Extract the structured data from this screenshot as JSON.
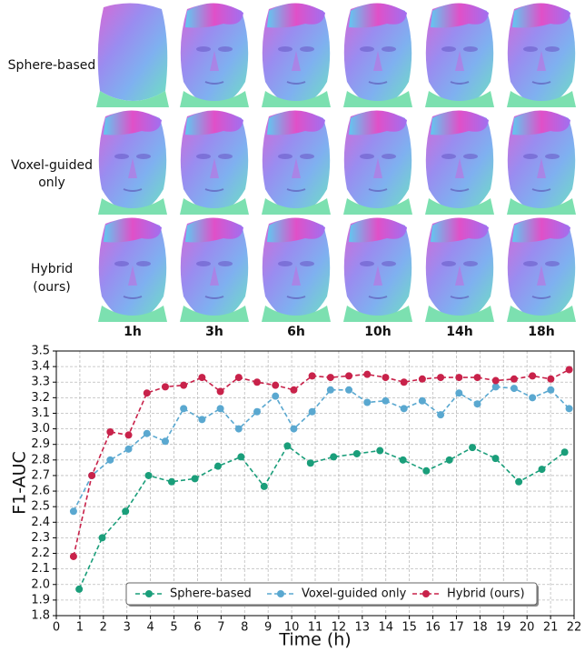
{
  "image_grid": {
    "rows": [
      "Sphere-based",
      "Voxel-guided",
      "only",
      "Hybrid",
      "(ours)"
    ],
    "columns": [
      "1h",
      "3h",
      "6h",
      "10h",
      "14h",
      "18h"
    ]
  },
  "chart_data": {
    "type": "line",
    "xlabel": "Time (h)",
    "ylabel": "F1-AUC",
    "xlim": [
      0,
      22
    ],
    "ylim": [
      1.8,
      3.5
    ],
    "xticks": [
      0,
      1,
      2,
      3,
      4,
      5,
      6,
      7,
      8,
      9,
      10,
      11,
      12,
      13,
      14,
      15,
      16,
      17,
      18,
      19,
      20,
      21,
      22
    ],
    "yticks": [
      1.8,
      1.9,
      {
        "value": 2,
        "label": "2.0"
      },
      2.1,
      2.2,
      2.3,
      2.4,
      2.5,
      2.6,
      2.7,
      2.8,
      2.9,
      {
        "value": 3,
        "label": "3.0"
      },
      3.1,
      3.2,
      3.3,
      3.4,
      3.5
    ],
    "grid": true,
    "legend": "lower center",
    "series": [
      {
        "name": "Sphere-based",
        "color": "#1a9e7a",
        "x": [
          0.97,
          1.95,
          2.94,
          3.92,
          4.9,
          5.89,
          6.87,
          7.85,
          8.83,
          9.82,
          10.8,
          11.78,
          12.77,
          13.75,
          14.73,
          15.72,
          16.7,
          17.68,
          18.66,
          19.65,
          20.63,
          21.6
        ],
        "values": [
          1.97,
          2.3,
          2.47,
          2.7,
          2.66,
          2.68,
          2.76,
          2.82,
          2.63,
          2.89,
          2.78,
          2.82,
          2.84,
          2.86,
          2.8,
          2.73,
          2.8,
          2.88,
          2.81,
          2.66,
          2.74,
          2.85
        ]
      },
      {
        "name": "Voxel-guided only",
        "color": "#5aa8d0",
        "x": [
          0.73,
          1.51,
          2.29,
          3.07,
          3.85,
          4.63,
          5.41,
          6.19,
          6.97,
          7.75,
          8.53,
          9.31,
          10.09,
          10.87,
          11.65,
          12.43,
          13.21,
          13.99,
          14.77,
          15.55,
          16.33,
          17.11,
          17.89,
          18.67,
          19.45,
          20.23,
          21.01,
          21.79
        ],
        "values": [
          2.47,
          2.7,
          2.8,
          2.87,
          2.97,
          2.92,
          3.13,
          3.06,
          3.13,
          3.0,
          3.11,
          3.21,
          3.0,
          3.11,
          3.25,
          3.25,
          3.17,
          3.18,
          3.13,
          3.18,
          3.09,
          3.23,
          3.16,
          3.27,
          3.26,
          3.2,
          3.25,
          3.13
        ]
      },
      {
        "name": "Hybrid (ours)",
        "color": "#c8224a",
        "x": [
          0.73,
          1.51,
          2.29,
          3.07,
          3.85,
          4.63,
          5.41,
          6.19,
          6.97,
          7.75,
          8.53,
          9.31,
          10.09,
          10.87,
          11.65,
          12.43,
          13.21,
          13.99,
          14.77,
          15.55,
          16.33,
          17.11,
          17.89,
          18.67,
          19.45,
          20.23,
          21.01,
          21.79
        ],
        "values": [
          2.18,
          2.7,
          2.98,
          2.96,
          3.23,
          3.27,
          3.28,
          3.33,
          3.24,
          3.33,
          3.3,
          3.28,
          3.25,
          3.34,
          3.33,
          3.34,
          3.35,
          3.33,
          3.3,
          3.32,
          3.33,
          3.33,
          3.33,
          3.31,
          3.32,
          3.34,
          3.32,
          3.38
        ]
      }
    ]
  }
}
